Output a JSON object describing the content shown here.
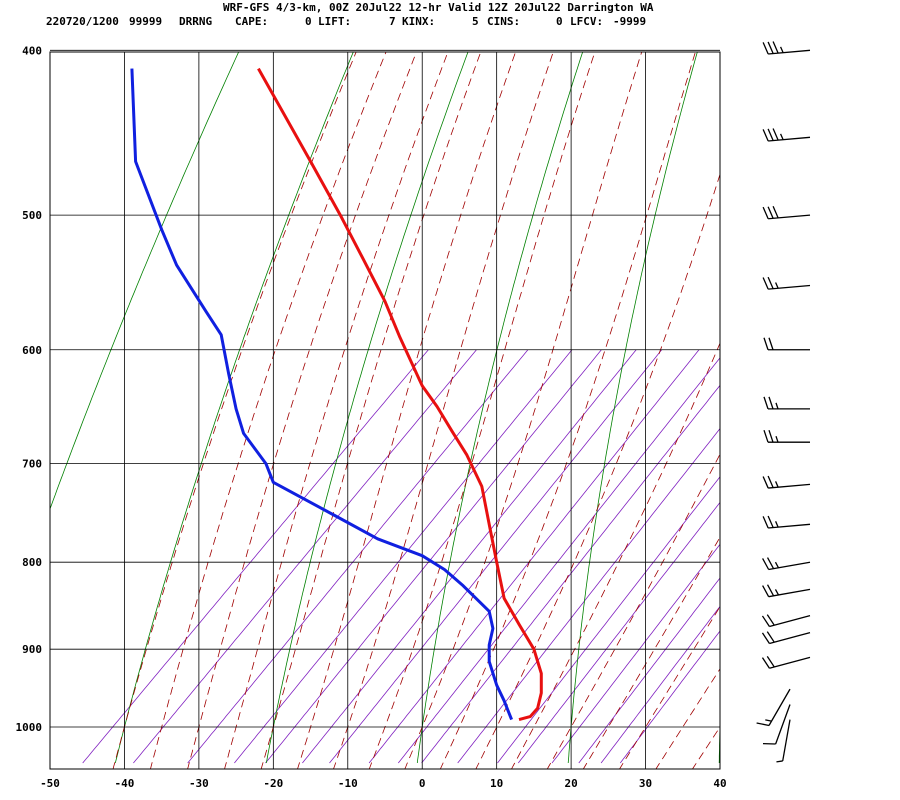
{
  "chart_data": {
    "type": "line",
    "title": "WRF-GFS 4/3-km, 00Z 20Jul22 12-hr Valid 12Z 20Jul22 Darrington WA",
    "subtitle": {
      "run": "220720/1200",
      "station_id": "99999",
      "station_code": "DRRNG",
      "cape_label": "CAPE:",
      "cape": "0",
      "lift_label": "LIFT:",
      "lift": "7",
      "kinx_label": "KINX:",
      "kinx": "5",
      "cins_label": "CINS:",
      "cins": "0",
      "lfcv_label": "LFCV:",
      "lfcv": "-9999"
    },
    "xlabel": "",
    "ylabel": "",
    "x_ticks": [
      "-50",
      "-40",
      "-30",
      "-20",
      "-10",
      "0",
      "10",
      "20",
      "30",
      "40"
    ],
    "y_ticks": [
      "400",
      "500",
      "600",
      "700",
      "800",
      "900",
      "1000"
    ],
    "xlim": [
      -50,
      40
    ],
    "plim": [
      400,
      1050
    ],
    "series": [
      {
        "name": "Temperature",
        "color": "#e81010",
        "points": [
          [
            -22,
            410
          ],
          [
            -15,
            465
          ],
          [
            -11,
            500
          ],
          [
            -8,
            530
          ],
          [
            -5,
            562
          ],
          [
            -3,
            590
          ],
          [
            0,
            630
          ],
          [
            2,
            648
          ],
          [
            4,
            670
          ],
          [
            6,
            692
          ],
          [
            8,
            722
          ],
          [
            9,
            760
          ],
          [
            10,
            800
          ],
          [
            11,
            840
          ],
          [
            13,
            870
          ],
          [
            15,
            900
          ],
          [
            16,
            930
          ],
          [
            16,
            955
          ],
          [
            15.5,
            975
          ],
          [
            14.5,
            986
          ],
          [
            13,
            990
          ]
        ]
      },
      {
        "name": "Dewpoint",
        "color": "#1020e0",
        "points": [
          [
            -39,
            410
          ],
          [
            -38.5,
            465
          ],
          [
            -35,
            510
          ],
          [
            -33,
            535
          ],
          [
            -29,
            570
          ],
          [
            -27,
            588
          ],
          [
            -26,
            620
          ],
          [
            -25,
            650
          ],
          [
            -24,
            672
          ],
          [
            -21,
            700
          ],
          [
            -20,
            718
          ],
          [
            -12,
            750
          ],
          [
            -6,
            775
          ],
          [
            0,
            793
          ],
          [
            3,
            808
          ],
          [
            5.5,
            826
          ],
          [
            9,
            855
          ],
          [
            9.5,
            875
          ],
          [
            9,
            895
          ],
          [
            9,
            915
          ],
          [
            10,
            945
          ],
          [
            11,
            965
          ],
          [
            12,
            990
          ]
        ]
      }
    ],
    "wind_barbs": [
      {
        "level": "400",
        "direction_deg": 265,
        "speed_kt": 35
      },
      {
        "level": "450",
        "direction_deg": 265,
        "speed_kt": 35
      },
      {
        "level": "500",
        "direction_deg": 265,
        "speed_kt": 30
      },
      {
        "level": "550",
        "direction_deg": 265,
        "speed_kt": 25
      },
      {
        "level": "600",
        "direction_deg": 270,
        "speed_kt": 20
      },
      {
        "level": "650",
        "direction_deg": 270,
        "speed_kt": 25
      },
      {
        "level": "680",
        "direction_deg": 270,
        "speed_kt": 25
      },
      {
        "level": "720",
        "direction_deg": 265,
        "speed_kt": 25
      },
      {
        "level": "760",
        "direction_deg": 265,
        "speed_kt": 25
      },
      {
        "level": "800",
        "direction_deg": 260,
        "speed_kt": 25
      },
      {
        "level": "830",
        "direction_deg": 260,
        "speed_kt": 25
      },
      {
        "level": "860",
        "direction_deg": 255,
        "speed_kt": 20
      },
      {
        "level": "880",
        "direction_deg": 255,
        "speed_kt": 20
      },
      {
        "level": "910",
        "direction_deg": 255,
        "speed_kt": 20
      },
      {
        "level": "950",
        "direction_deg": 210,
        "speed_kt": 15
      },
      {
        "level": "970",
        "direction_deg": 200,
        "speed_kt": 10
      },
      {
        "level": "990",
        "direction_deg": 190,
        "speed_kt": 5
      }
    ],
    "colors": {
      "isotherm": "#000000",
      "dry_adiabat": "#008000",
      "moist_adiabat": "#a00000",
      "mixing_ratio": "#8020c0"
    }
  }
}
